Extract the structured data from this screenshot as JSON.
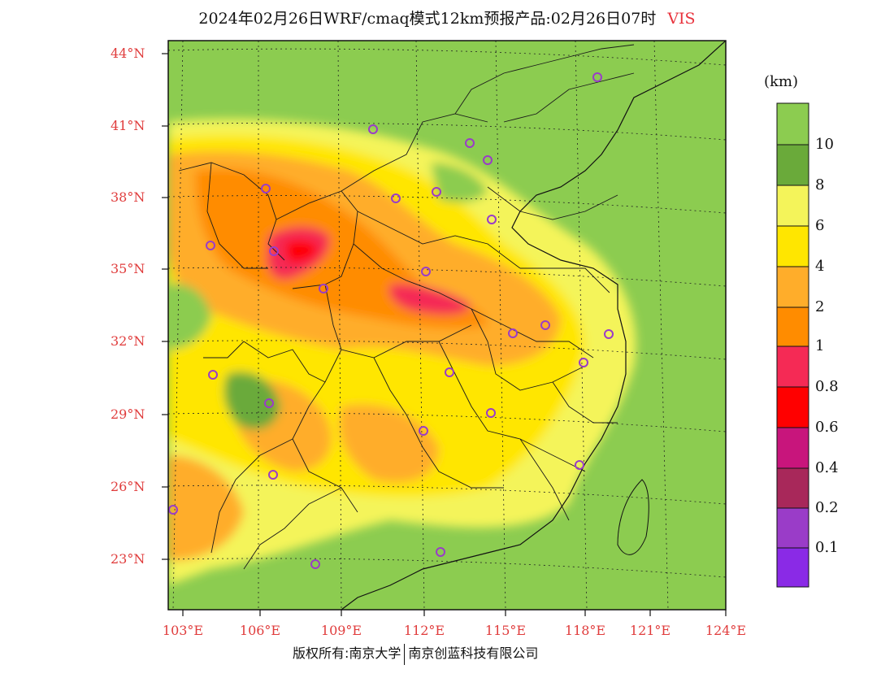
{
  "title": "2024年02月26日WRF/cmaq模式12km预报产品:02月26日07时",
  "variable": "VIS",
  "map": {
    "lat_labels": [
      "44°N",
      "41°N",
      "38°N",
      "35°N",
      "32°N",
      "29°N",
      "26°N",
      "23°N"
    ],
    "lon_labels": [
      "103°E",
      "106°E",
      "109°E",
      "112°E",
      "115°E",
      "118°E",
      "121°E",
      "124°E"
    ],
    "land_color": "#8ccc50",
    "sea_color": "#8ccc50"
  },
  "legend": {
    "unit": "(km)",
    "levels": [
      "10",
      "8",
      "6",
      "4",
      "2",
      "1",
      "0.8",
      "0.6",
      "0.4",
      "0.2",
      "0.1"
    ],
    "colors": [
      "#8ccc50",
      "#6aaa3a",
      "#f4f45a",
      "#ffe600",
      "#ffad2a",
      "#ff8c00",
      "#f52a55",
      "#ff0000",
      "#c8157c",
      "#a8285a",
      "#9a3cc8",
      "#8a2ae6"
    ]
  },
  "copyright": {
    "left": "版权所有:南京大学",
    "right": "南京创蓝科技有限公司"
  }
}
